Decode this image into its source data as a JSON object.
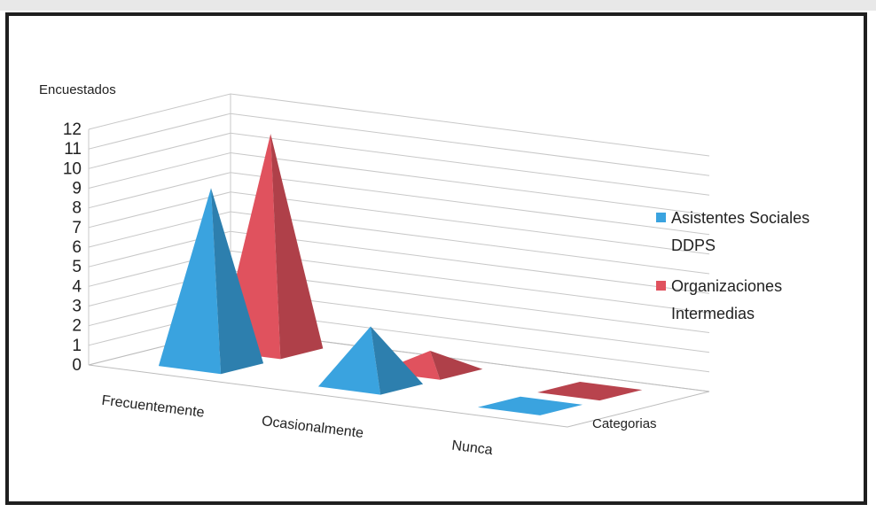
{
  "chart_data": {
    "type": "bar",
    "subtype": "3d-pyramid",
    "ylabel": "Encuestados",
    "xlabel": "Categorias",
    "categories": [
      "Frecuentemente",
      "Ocasionalmente",
      "Nunca"
    ],
    "yticks": [
      "0",
      "1",
      "2",
      "3",
      "4",
      "5",
      "6",
      "7",
      "8",
      "9",
      "10",
      "11",
      "12"
    ],
    "ylim": [
      0,
      12
    ],
    "grid": true,
    "legend_position": "right",
    "series": [
      {
        "name": "Asistentes Sociales DDPS",
        "values": [
          9,
          3,
          0
        ],
        "color": "#3aa3df"
      },
      {
        "name": "Organizaciones Intermedias",
        "values": [
          11,
          1,
          0
        ],
        "color": "#e0525e"
      }
    ]
  },
  "legend": {
    "items": [
      {
        "line1": "Asistentes Sociales",
        "line2": "DDPS",
        "color": "#3aa3df"
      },
      {
        "line1": "Organizaciones",
        "line2": "Intermedias",
        "color": "#e0525e"
      }
    ]
  }
}
